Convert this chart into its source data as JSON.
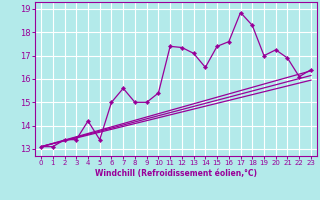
{
  "xlabel": "Windchill (Refroidissement éolien,°C)",
  "bg_color": "#b3eaea",
  "grid_color": "#c8f0f0",
  "line_color": "#990099",
  "xlim": [
    -0.5,
    23.5
  ],
  "ylim": [
    12.7,
    19.3
  ],
  "yticks": [
    13,
    14,
    15,
    16,
    17,
    18,
    19
  ],
  "xticks": [
    0,
    1,
    2,
    3,
    4,
    5,
    6,
    7,
    8,
    9,
    10,
    11,
    12,
    13,
    14,
    15,
    16,
    17,
    18,
    19,
    20,
    21,
    22,
    23
  ],
  "scatter_x": [
    0,
    1,
    2,
    3,
    4,
    5,
    6,
    7,
    8,
    9,
    10,
    11,
    12,
    13,
    14,
    15,
    16,
    17,
    18,
    19,
    20,
    21,
    22,
    23
  ],
  "scatter_y": [
    13.1,
    13.1,
    13.4,
    13.4,
    14.2,
    13.4,
    15.0,
    15.6,
    15.0,
    15.0,
    15.4,
    17.4,
    17.35,
    17.1,
    16.5,
    17.4,
    17.6,
    18.85,
    18.3,
    17.0,
    17.25,
    16.9,
    16.1,
    16.4
  ],
  "line1_x": [
    0,
    23
  ],
  "line1_y": [
    13.1,
    16.35
  ],
  "line2_x": [
    0,
    23
  ],
  "line2_y": [
    13.1,
    16.15
  ],
  "line3_x": [
    0,
    23
  ],
  "line3_y": [
    13.1,
    15.95
  ]
}
